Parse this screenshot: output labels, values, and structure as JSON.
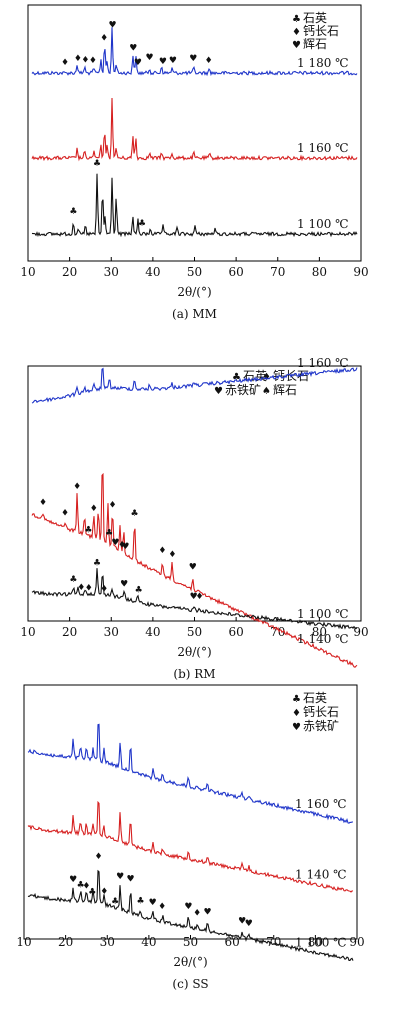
{
  "chart_data": [
    {
      "type": "line",
      "caption": "(a) MM",
      "xlabel": "2θ/(°)",
      "xlim": [
        10,
        90
      ],
      "x_ticks": [
        10,
        20,
        30,
        40,
        50,
        60,
        70,
        80,
        90
      ],
      "legend": [
        {
          "symbol": "♣",
          "label": "石英"
        },
        {
          "symbol": "♦",
          "label": "钙长石"
        },
        {
          "symbol": "♥",
          "label": "辉石"
        }
      ],
      "series": [
        {
          "name": "1 180 ℃",
          "color": "#1f35c9",
          "baseline": 73,
          "slope": 0.0,
          "peaks": [
            [
              21.8,
              9
            ],
            [
              23.6,
              6
            ],
            [
              25.8,
              5
            ],
            [
              27.5,
              14
            ],
            [
              28.4,
              30
            ],
            [
              29.0,
              12
            ],
            [
              30.2,
              46
            ],
            [
              31.2,
              10
            ],
            [
              35.2,
              18
            ],
            [
              35.9,
              16
            ],
            [
              39.2,
              5
            ],
            [
              42.1,
              7
            ],
            [
              44.6,
              5
            ],
            [
              49.8,
              5
            ],
            [
              53.6,
              4
            ]
          ],
          "markers": [
            [
              18.9,
              "♦"
            ],
            [
              22.0,
              "♦"
            ],
            [
              23.8,
              "♦"
            ],
            [
              25.6,
              "♦"
            ],
            [
              28.3,
              "♦"
            ],
            [
              30.3,
              "♥"
            ],
            [
              35.3,
              "♥"
            ],
            [
              36.4,
              "♥"
            ],
            [
              39.2,
              "♥"
            ],
            [
              42.4,
              "♥"
            ],
            [
              44.8,
              "♥"
            ],
            [
              49.7,
              "♥"
            ],
            [
              53.4,
              "♦"
            ]
          ]
        },
        {
          "name": "1 160 ℃",
          "color": "#d62020",
          "baseline": 158,
          "slope": 0.0,
          "peaks": [
            [
              21.8,
              9
            ],
            [
              23.6,
              6
            ],
            [
              25.8,
              6
            ],
            [
              27.5,
              12
            ],
            [
              28.4,
              30
            ],
            [
              29.0,
              12
            ],
            [
              30.2,
              60
            ],
            [
              31.2,
              10
            ],
            [
              35.2,
              22
            ],
            [
              35.9,
              20
            ],
            [
              39.2,
              5
            ],
            [
              42.1,
              6
            ],
            [
              44.6,
              5
            ],
            [
              49.8,
              5
            ],
            [
              53.6,
              4
            ]
          ],
          "markers": []
        },
        {
          "name": "1 100 ℃",
          "color": "#111111",
          "baseline": 234,
          "slope": 0.0,
          "peaks": [
            [
              20.9,
              12
            ],
            [
              22.0,
              6
            ],
            [
              23.8,
              8
            ],
            [
              26.6,
              60
            ],
            [
              27.9,
              44
            ],
            [
              28.5,
              18
            ],
            [
              30.2,
              58
            ],
            [
              31.2,
              38
            ],
            [
              35.2,
              18
            ],
            [
              36.4,
              14
            ],
            [
              39.4,
              6
            ],
            [
              42.4,
              8
            ],
            [
              45.8,
              6
            ],
            [
              50.1,
              8
            ],
            [
              54.9,
              5
            ]
          ],
          "markers": [
            [
              20.9,
              "♣"
            ],
            [
              26.6,
              "♣"
            ],
            [
              37.4,
              "♣"
            ]
          ]
        }
      ]
    },
    {
      "type": "line",
      "caption": "(b) RM",
      "xlabel": "2θ/(°)",
      "xlim": [
        10,
        90
      ],
      "x_ticks": [
        10,
        20,
        30,
        40,
        50,
        60,
        70,
        80,
        90
      ],
      "legend": [
        {
          "symbol": "♣",
          "label": "石英"
        },
        {
          "symbol": "♦",
          "label": "钙长石"
        },
        {
          "symbol": "♥",
          "label": "赤铁矿"
        },
        {
          "symbol": "♠",
          "label": "辉石"
        }
      ],
      "series": [
        {
          "name": "1 160 ℃",
          "color": "#1f35c9",
          "baseline": 402,
          "slope": -0.1,
          "peaks": [
            [
              21.8,
              8
            ],
            [
              23.6,
              6
            ],
            [
              25.8,
              5
            ],
            [
              27.9,
              26
            ],
            [
              29.6,
              10
            ],
            [
              35.6,
              10
            ],
            [
              39.2,
              4
            ],
            [
              44.6,
              4
            ],
            [
              49.8,
              4
            ]
          ],
          "markers": []
        },
        {
          "name": "1 140 ℃",
          "color": "#d62020",
          "baseline": 512,
          "slope": 0.47,
          "peaks": [
            [
              13.6,
              6
            ],
            [
              18.9,
              6
            ],
            [
              21.8,
              38
            ],
            [
              23.6,
              18
            ],
            [
              25.8,
              24
            ],
            [
              26.9,
              30
            ],
            [
              27.9,
              90
            ],
            [
              29.2,
              42
            ],
            [
              30.3,
              36
            ],
            [
              32.1,
              26
            ],
            [
              33.0,
              22
            ],
            [
              35.6,
              38
            ],
            [
              42.3,
              14
            ],
            [
              44.6,
              18
            ],
            [
              49.6,
              12
            ]
          ],
          "markers": [
            [
              13.6,
              "♦"
            ],
            [
              18.9,
              "♦"
            ],
            [
              21.8,
              "♦"
            ],
            [
              24.5,
              "♣"
            ],
            [
              25.8,
              "♦"
            ],
            [
              29.5,
              "♣"
            ],
            [
              30.3,
              "♦"
            ],
            [
              31.0,
              "♥"
            ],
            [
              32.6,
              "♦"
            ],
            [
              33.4,
              "♥"
            ],
            [
              35.6,
              "♣"
            ],
            [
              42.3,
              "♦"
            ],
            [
              44.7,
              "♦"
            ],
            [
              49.6,
              "♥"
            ]
          ]
        },
        {
          "name": "1 100 ℃",
          "color": "#111111",
          "baseline": 592,
          "slope": 0.11,
          "peaks": [
            [
              20.9,
              7
            ],
            [
              22.0,
              6
            ],
            [
              23.8,
              5
            ],
            [
              26.6,
              26
            ],
            [
              27.9,
              22
            ],
            [
              30.2,
              8
            ],
            [
              33.1,
              8
            ],
            [
              36.4,
              8
            ],
            [
              49.9,
              4
            ],
            [
              51.2,
              4
            ]
          ],
          "markers": [
            [
              20.9,
              "♣"
            ],
            [
              22.8,
              "♦"
            ],
            [
              24.6,
              "♦"
            ],
            [
              26.6,
              "♣"
            ],
            [
              28.3,
              "♦"
            ],
            [
              33.1,
              "♥"
            ],
            [
              36.6,
              "♣"
            ],
            [
              49.8,
              "♥"
            ],
            [
              51.2,
              "♦"
            ]
          ]
        }
      ]
    },
    {
      "type": "line",
      "caption": "(c) SS",
      "xlabel": "2θ/(°)",
      "xlim": [
        10,
        90
      ],
      "x_ticks": [
        10,
        20,
        30,
        40,
        50,
        60,
        70,
        80,
        90
      ],
      "legend": [
        {
          "symbol": "♣",
          "label": "石英"
        },
        {
          "symbol": "♦",
          "label": "钙长石"
        },
        {
          "symbol": "♥",
          "label": "赤铁矿"
        }
      ],
      "series": [
        {
          "name": "1 160 ℃",
          "color": "#1f35c9",
          "baseline": 750,
          "slope": 0.22,
          "peaks": [
            [
              21.8,
              18
            ],
            [
              23.6,
              12
            ],
            [
              25.0,
              10
            ],
            [
              26.6,
              12
            ],
            [
              27.9,
              48
            ],
            [
              29.2,
              14
            ],
            [
              33.1,
              26
            ],
            [
              35.6,
              30
            ],
            [
              41.0,
              8
            ],
            [
              43.3,
              6
            ],
            [
              49.5,
              10
            ],
            [
              54.1,
              8
            ],
            [
              62.4,
              6
            ],
            [
              64.0,
              5
            ]
          ],
          "markers": []
        },
        {
          "name": "1 140 ℃",
          "color": "#d62020",
          "baseline": 826,
          "slope": 0.2,
          "peaks": [
            [
              21.8,
              16
            ],
            [
              23.6,
              12
            ],
            [
              25.0,
              10
            ],
            [
              26.6,
              12
            ],
            [
              27.9,
              44
            ],
            [
              29.2,
              12
            ],
            [
              33.1,
              30
            ],
            [
              35.6,
              28
            ],
            [
              41.0,
              8
            ],
            [
              43.3,
              5
            ],
            [
              49.5,
              10
            ],
            [
              54.1,
              8
            ],
            [
              62.4,
              6
            ],
            [
              64.0,
              5
            ]
          ],
          "markers": []
        },
        {
          "name": "1 100 ℃",
          "color": "#111111",
          "baseline": 894,
          "slope": 0.2,
          "peaks": [
            [
              21.8,
              14
            ],
            [
              23.6,
              10
            ],
            [
              25.0,
              10
            ],
            [
              26.6,
              12
            ],
            [
              27.9,
              42
            ],
            [
              29.2,
              10
            ],
            [
              33.1,
              26
            ],
            [
              35.6,
              26
            ],
            [
              38.0,
              6
            ],
            [
              41.0,
              8
            ],
            [
              43.3,
              6
            ],
            [
              49.5,
              10
            ],
            [
              51.6,
              5
            ],
            [
              54.1,
              8
            ],
            [
              62.4,
              6
            ],
            [
              64.0,
              5
            ]
          ],
          "markers": [
            [
              21.8,
              "♥"
            ],
            [
              23.6,
              "♣"
            ],
            [
              25.0,
              "♦"
            ],
            [
              26.4,
              "♣"
            ],
            [
              27.9,
              "♦"
            ],
            [
              29.3,
              "♦"
            ],
            [
              31.9,
              "♣"
            ],
            [
              33.1,
              "♥"
            ],
            [
              35.6,
              "♥"
            ],
            [
              38.0,
              "♣"
            ],
            [
              40.9,
              "♥"
            ],
            [
              43.2,
              "♦"
            ],
            [
              49.5,
              "♥"
            ],
            [
              51.6,
              "♦"
            ],
            [
              54.1,
              "♥"
            ],
            [
              62.4,
              "♥"
            ],
            [
              64.0,
              "♥"
            ]
          ]
        }
      ]
    }
  ]
}
